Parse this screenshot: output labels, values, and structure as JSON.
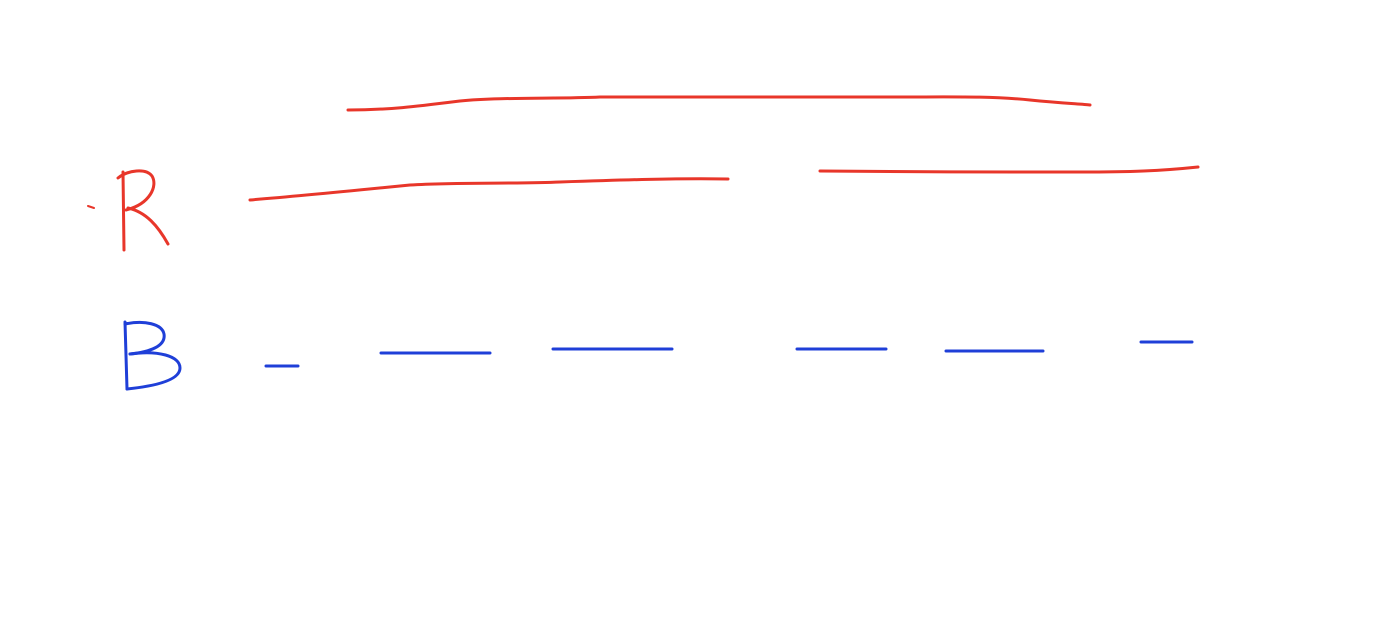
{
  "colors": {
    "background": "#ffffff",
    "red": "#e8362a",
    "blue": "#1f3fd8"
  },
  "rows": [
    {
      "label": "R",
      "color_key": "red"
    },
    {
      "label": "B",
      "color_key": "blue"
    }
  ]
}
